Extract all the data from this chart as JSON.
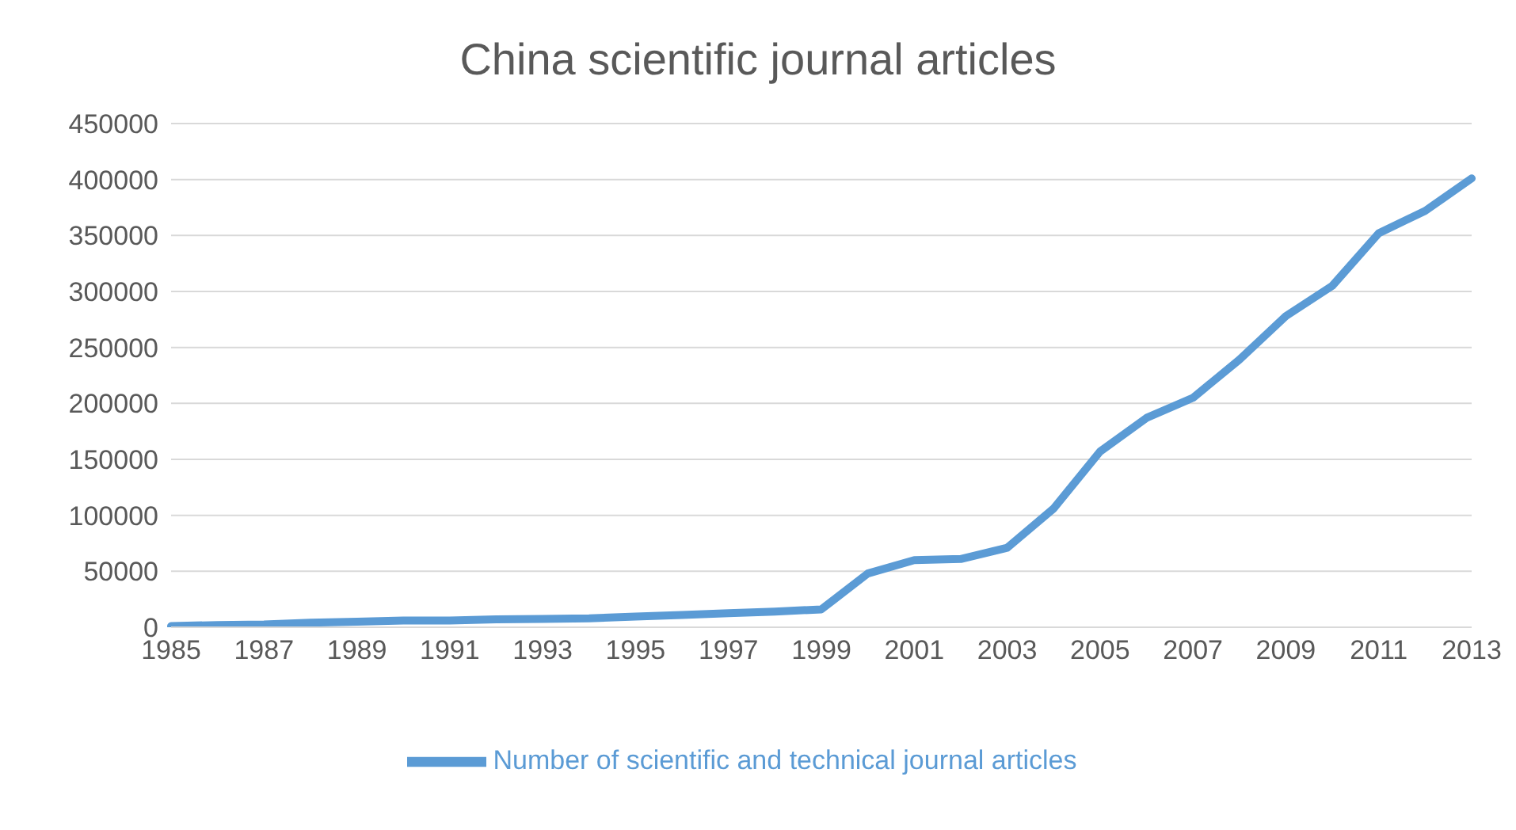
{
  "chart_data": {
    "type": "line",
    "title": "China scientific journal articles",
    "categories": [
      "1985",
      null,
      "1987",
      null,
      "1989",
      null,
      "1991",
      null,
      "1993",
      null,
      "1995",
      null,
      "1997",
      null,
      "1999",
      null,
      "2001",
      null,
      "2003",
      null,
      "2005",
      null,
      "2007",
      null,
      "2009",
      null,
      "2011",
      null,
      "2013"
    ],
    "series": [
      {
        "name": "Number of scientific and technical journal articles",
        "color": "#5b9bd5",
        "values": [
          1000,
          2000,
          2500,
          4000,
          5000,
          6000,
          6000,
          7000,
          7500,
          8000,
          9500,
          11000,
          12500,
          14000,
          16000,
          48000,
          60000,
          61000,
          71000,
          106000,
          157000,
          187000,
          205000,
          239000,
          278000,
          305000,
          352000,
          372000,
          401000
        ]
      }
    ],
    "ylim": [
      0,
      450000
    ],
    "yticks": [
      0,
      50000,
      100000,
      150000,
      200000,
      250000,
      300000,
      350000,
      400000,
      450000
    ],
    "grid": "y",
    "legend": "bottom",
    "marker": "none",
    "line_style": "solid"
  }
}
